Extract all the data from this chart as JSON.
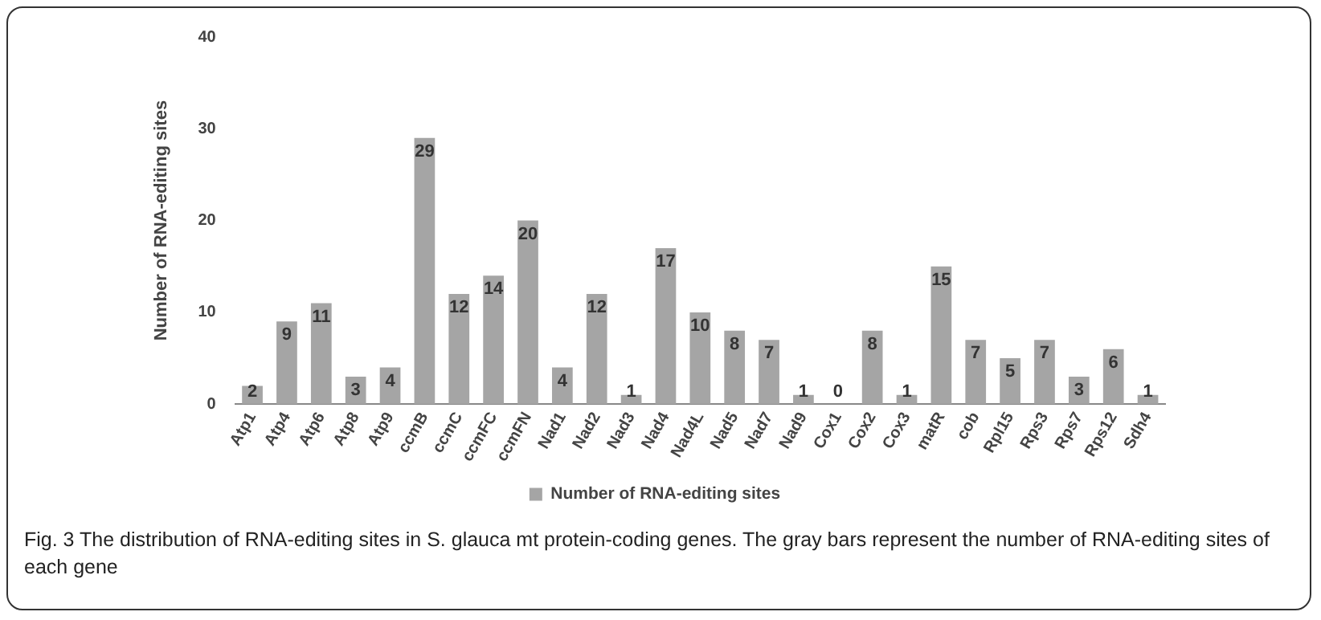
{
  "chart_data": {
    "type": "bar",
    "ylabel": "Number of RNA-editing sites",
    "categories": [
      "Atp1",
      "Atp4",
      "Atp6",
      "Atp8",
      "Atp9",
      "ccmB",
      "ccmC",
      "ccmFC",
      "ccmFN",
      "Nad1",
      "Nad2",
      "Nad3",
      "Nad4",
      "Nad4L",
      "Nad5",
      "Nad7",
      "Nad9",
      "Cox1",
      "Cox2",
      "Cox3",
      "matR",
      "cob",
      "Rpl15",
      "Rps3",
      "Rps7",
      "Rps12",
      "Sdh4"
    ],
    "series": [
      {
        "name": "Number of RNA-editing sites",
        "color": "#a5a5a5",
        "values": [
          2,
          9,
          11,
          3,
          4,
          29,
          12,
          14,
          20,
          4,
          12,
          1,
          17,
          10,
          8,
          7,
          1,
          0,
          8,
          1,
          15,
          7,
          5,
          7,
          3,
          6,
          1
        ]
      }
    ],
    "ylim": [
      0,
      40
    ],
    "yticks": [
      0,
      10,
      20,
      30,
      40
    ],
    "grid": false,
    "legend": "bottom",
    "data_labels": true,
    "annotations": [
      "Fig. 3 The distribution of RNA-editing sites in S. glauca mt protein-coding genes. The gray bars represent the number of RNA-editing sites of each gene"
    ]
  }
}
